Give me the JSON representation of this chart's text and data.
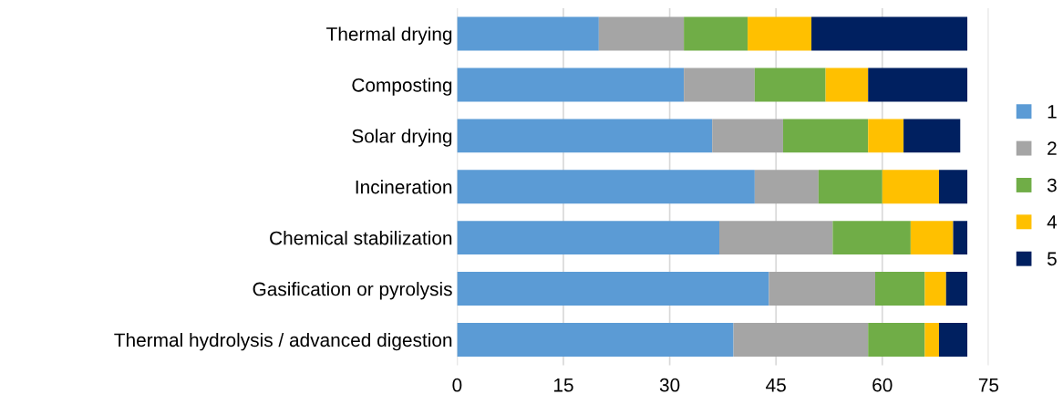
{
  "chart_data": {
    "type": "bar",
    "orientation": "horizontal",
    "stacked": true,
    "categories": [
      "Thermal drying",
      "Composting",
      "Solar drying",
      "Incineration",
      "Chemical stabilization",
      "Gasification or pyrolysis",
      "Thermal hydrolysis / advanced digestion"
    ],
    "series": [
      {
        "name": "1",
        "color": "#5b9bd5",
        "values": [
          20,
          32,
          36,
          42,
          37,
          44,
          39
        ]
      },
      {
        "name": "2",
        "color": "#a5a5a5",
        "values": [
          12,
          10,
          10,
          9,
          16,
          15,
          19
        ]
      },
      {
        "name": "3",
        "color": "#70ad47",
        "values": [
          9,
          10,
          12,
          9,
          11,
          7,
          8
        ]
      },
      {
        "name": "4",
        "color": "#ffc000",
        "values": [
          9,
          6,
          5,
          8,
          6,
          3,
          2
        ]
      },
      {
        "name": "5",
        "color": "#002060",
        "values": [
          22,
          14,
          8,
          4,
          2,
          3,
          4
        ]
      }
    ],
    "xlim": [
      0,
      75
    ],
    "xticks": [
      0,
      15,
      30,
      45,
      60,
      75
    ],
    "grid": "x",
    "legend": "right"
  }
}
